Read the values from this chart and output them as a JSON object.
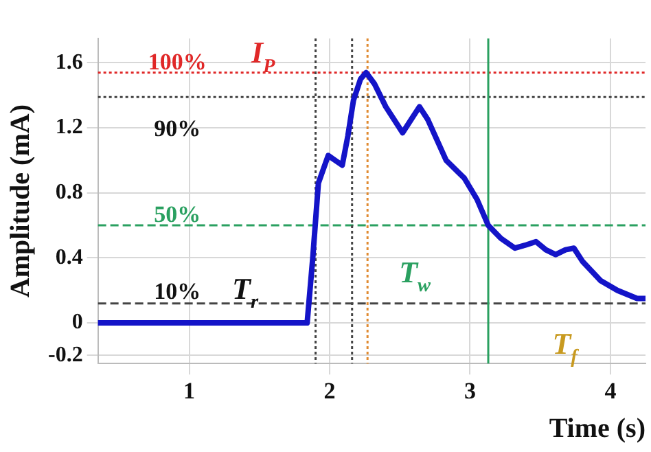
{
  "chart_data": {
    "type": "line",
    "xlabel": "Time (s)",
    "ylabel": "Amplitude (mA)",
    "xlim": [
      0.35,
      4.25
    ],
    "xticks": [
      1,
      2,
      3,
      4
    ],
    "ylim": [
      -0.25,
      1.75
    ],
    "yticks": [
      -0.2,
      0,
      0.4,
      0.8,
      1.2,
      1.6
    ],
    "grid": true,
    "legend": false,
    "marker": "none",
    "line_style": "solid",
    "series": [
      {
        "color": "#1414c8",
        "x": [
          0.35,
          1.0,
          1.5,
          1.84,
          1.88,
          1.92,
          1.99,
          2.04,
          2.09,
          2.13,
          2.17,
          2.22,
          2.26,
          2.32,
          2.4,
          2.52,
          2.58,
          2.64,
          2.7,
          2.83,
          2.96,
          3.05,
          3.13,
          3.22,
          3.32,
          3.4,
          3.47,
          3.54,
          3.61,
          3.68,
          3.74,
          3.8,
          3.93,
          4.05,
          4.19,
          4.25
        ],
        "values": [
          0,
          0,
          0,
          0,
          0.4,
          0.86,
          1.03,
          1.0,
          0.97,
          1.15,
          1.37,
          1.5,
          1.54,
          1.47,
          1.33,
          1.17,
          1.25,
          1.33,
          1.25,
          1.0,
          0.89,
          0.76,
          0.6,
          0.52,
          0.46,
          0.48,
          0.5,
          0.45,
          0.42,
          0.45,
          0.46,
          0.38,
          0.26,
          0.2,
          0.15,
          0.15
        ]
      }
    ],
    "ref_lines": [
      {
        "axis": "y",
        "value": 1.54,
        "color": "#e02828",
        "line_style": "dotted"
      },
      {
        "axis": "y",
        "value": 1.39,
        "color": "#444444",
        "line_style": "dotted"
      },
      {
        "axis": "y",
        "value": 0.6,
        "color": "#2aa060",
        "line_style": "dashed"
      },
      {
        "axis": "y",
        "value": 0.12,
        "color": "#444444",
        "line_style": "dashed"
      },
      {
        "axis": "x",
        "value": 1.9,
        "color": "#444444",
        "line_style": "dotted"
      },
      {
        "axis": "x",
        "value": 2.16,
        "color": "#444444",
        "line_style": "dotted"
      },
      {
        "axis": "x",
        "value": 2.27,
        "color": "#e08a30",
        "line_style": "dotted"
      },
      {
        "axis": "x",
        "value": 3.13,
        "color": "#2aa060",
        "line_style": "solid"
      }
    ],
    "annotations": [
      "100%",
      "I$_{P}$",
      "90%",
      "50%",
      "10%",
      "T$_{r}$",
      "T$_{w}$",
      "T$_{f}$"
    ]
  }
}
